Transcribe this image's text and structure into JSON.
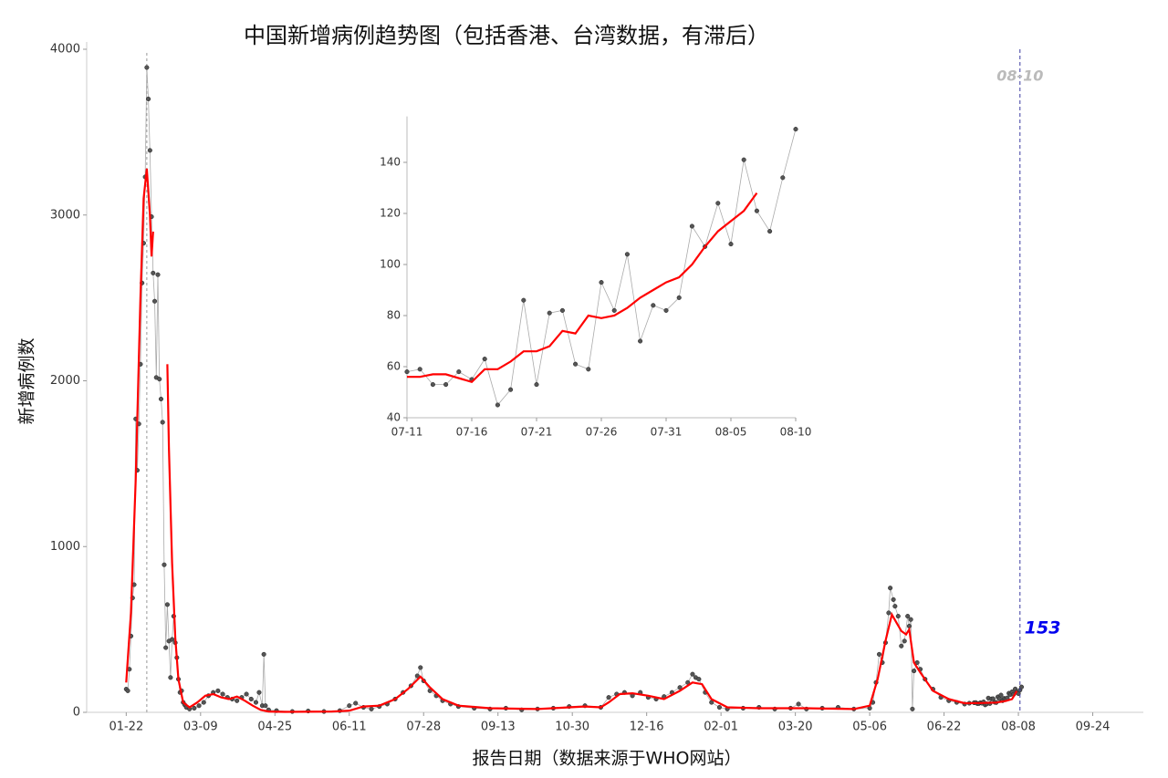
{
  "chart_data": [
    {
      "type": "line",
      "title": "中国新增病例趋势图（包括香港、台湾数据，有滞后）",
      "x_label": "报告日期（数据来源于WHO网站）",
      "y_label": "新增病例数",
      "xlim": [
        -25,
        643
      ],
      "ylim": [
        0,
        4000
      ],
      "xticks": [
        {
          "value": 0,
          "label": "01-22"
        },
        {
          "value": 47,
          "label": "03-09"
        },
        {
          "value": 94,
          "label": "04-25"
        },
        {
          "value": 141,
          "label": "06-11"
        },
        {
          "value": 188,
          "label": "07-28"
        },
        {
          "value": 235,
          "label": "09-13"
        },
        {
          "value": 282,
          "label": "10-30"
        },
        {
          "value": 329,
          "label": "12-16"
        },
        {
          "value": 376,
          "label": "02-01"
        },
        {
          "value": 423,
          "label": "03-20"
        },
        {
          "value": 470,
          "label": "05-06"
        },
        {
          "value": 517,
          "label": "06-22"
        },
        {
          "value": 564,
          "label": "08-08"
        },
        {
          "value": 611,
          "label": "09-24"
        }
      ],
      "yticks": [
        0,
        1000,
        2000,
        3000,
        4000
      ],
      "grid": false,
      "reference_line_x": 13,
      "end_marker": {
        "x": 565,
        "label": "08-10",
        "value": 153
      },
      "series": [
        {
          "color": "#555555",
          "markers": true,
          "x": [
            0,
            1,
            2,
            3,
            4,
            5,
            6,
            7,
            8,
            9,
            10,
            11,
            12,
            13,
            14,
            15,
            16,
            17,
            18,
            19,
            20,
            21,
            22,
            23,
            24,
            25,
            26,
            27,
            28,
            29,
            30,
            31,
            32,
            33,
            34,
            35,
            36,
            37,
            38,
            40,
            43,
            46,
            49,
            52,
            55,
            58,
            61,
            64,
            67,
            70,
            73,
            76,
            79,
            82,
            84,
            86,
            87,
            88,
            90,
            95,
            105,
            115,
            125,
            135,
            141,
            145,
            150,
            155,
            160,
            165,
            170,
            175,
            180,
            184,
            186,
            188,
            192,
            196,
            200,
            205,
            210,
            220,
            230,
            240,
            250,
            260,
            270,
            280,
            290,
            300,
            305,
            310,
            315,
            320,
            325,
            330,
            335,
            340,
            345,
            350,
            355,
            358,
            360,
            362,
            366,
            370,
            375,
            380,
            390,
            400,
            410,
            420,
            425,
            430,
            440,
            450,
            460,
            470,
            472,
            474,
            476,
            478,
            480,
            482,
            483,
            485,
            486,
            488,
            490,
            492,
            494,
            495,
            496,
            497,
            498,
            500,
            502,
            505,
            510,
            515,
            520,
            525,
            530,
            533,
            536,
            537,
            538,
            539,
            540,
            541,
            542,
            543,
            544,
            545,
            546,
            547,
            548,
            549,
            550,
            551,
            552,
            553,
            554,
            555,
            556,
            557,
            558,
            559,
            560,
            561,
            562,
            563,
            564,
            565,
            566
          ],
          "values": [
            140,
            130,
            260,
            460,
            690,
            770,
            1770,
            1460,
            1740,
            2100,
            2590,
            2830,
            3230,
            3890,
            3700,
            3390,
            2990,
            2650,
            2480,
            2020,
            2640,
            2010,
            1890,
            1750,
            890,
            390,
            650,
            430,
            210,
            440,
            580,
            420,
            330,
            200,
            120,
            130,
            60,
            45,
            30,
            20,
            25,
            40,
            60,
            100,
            120,
            130,
            110,
            90,
            80,
            70,
            90,
            110,
            80,
            60,
            120,
            40,
            350,
            40,
            15,
            10,
            5,
            8,
            5,
            10,
            40,
            55,
            30,
            20,
            35,
            50,
            80,
            120,
            160,
            220,
            270,
            190,
            130,
            100,
            70,
            50,
            35,
            25,
            20,
            25,
            15,
            20,
            25,
            35,
            40,
            30,
            90,
            110,
            120,
            100,
            120,
            90,
            80,
            95,
            120,
            150,
            180,
            230,
            210,
            200,
            120,
            60,
            30,
            20,
            25,
            30,
            20,
            25,
            50,
            20,
            25,
            30,
            20,
            25,
            60,
            180,
            350,
            300,
            420,
            600,
            750,
            680,
            640,
            580,
            400,
            430,
            580,
            520,
            560,
            20,
            250,
            300,
            260,
            200,
            140,
            90,
            70,
            60,
            50,
            55,
            58,
            59,
            53,
            53,
            58,
            55,
            63,
            45,
            51,
            86,
            53,
            81,
            82,
            61,
            59,
            93,
            82,
            104,
            70,
            84,
            82,
            87,
            115,
            107,
            124,
            108,
            141,
            121,
            113,
            134,
            153
          ]
        },
        {
          "color": "#ff0000",
          "markers": false,
          "x": [
            0,
            3,
            6,
            9,
            11,
            13,
            15,
            16,
            17,
            18,
            26,
            27,
            29,
            31,
            33,
            36,
            40,
            45,
            50,
            55,
            60,
            65,
            70,
            75,
            80,
            85,
            90,
            100,
            130,
            141,
            150,
            160,
            170,
            178,
            186,
            192,
            200,
            210,
            230,
            260,
            290,
            300,
            305,
            312,
            320,
            330,
            340,
            350,
            358,
            364,
            370,
            380,
            400,
            430,
            460,
            470,
            475,
            480,
            484,
            487,
            490,
            493,
            495,
            498,
            502,
            510,
            520,
            530,
            540,
            550,
            556,
            560,
            563
          ],
          "values": [
            180,
            600,
            1400,
            2500,
            3100,
            3280,
            3000,
            2750,
            2900,
            null,
            2100,
            1600,
            900,
            450,
            200,
            60,
            30,
            60,
            100,
            110,
            90,
            80,
            95,
            70,
            40,
            15,
            5,
            3,
            5,
            10,
            35,
            40,
            80,
            140,
            215,
            150,
            80,
            40,
            25,
            20,
            35,
            30,
            60,
            110,
            115,
            100,
            80,
            130,
            180,
            170,
            80,
            30,
            25,
            25,
            20,
            40,
            200,
            430,
            590,
            540,
            490,
            470,
            500,
            300,
            240,
            130,
            80,
            55,
            56,
            59,
            68,
            80,
            128
          ]
        }
      ]
    },
    {
      "type": "line",
      "xlim": [
        536,
        566
      ],
      "ylim": [
        40,
        158
      ],
      "xticks": [
        {
          "value": 536,
          "label": "07-11"
        },
        {
          "value": 541,
          "label": "07-16"
        },
        {
          "value": 546,
          "label": "07-21"
        },
        {
          "value": 551,
          "label": "07-26"
        },
        {
          "value": 556,
          "label": "07-31"
        },
        {
          "value": 561,
          "label": "08-05"
        },
        {
          "value": 566,
          "label": "08-10"
        }
      ],
      "yticks": [
        40,
        60,
        80,
        100,
        120,
        140
      ],
      "series": [
        {
          "color": "#555555",
          "markers": true,
          "x": [
            536,
            537,
            538,
            539,
            540,
            541,
            542,
            543,
            544,
            545,
            546,
            547,
            548,
            549,
            550,
            551,
            552,
            553,
            554,
            555,
            556,
            557,
            558,
            559,
            560,
            561,
            562,
            563,
            564,
            565,
            566
          ],
          "values": [
            58,
            59,
            53,
            53,
            58,
            55,
            63,
            45,
            51,
            86,
            53,
            81,
            82,
            61,
            59,
            93,
            82,
            104,
            70,
            84,
            82,
            87,
            115,
            107,
            124,
            108,
            141,
            121,
            113,
            134,
            153
          ]
        },
        {
          "color": "#ff0000",
          "markers": false,
          "x": [
            536,
            537,
            538,
            539,
            541,
            542,
            543,
            544,
            545,
            546,
            547,
            548,
            549,
            550,
            551,
            552,
            553,
            554,
            555,
            556,
            557,
            558,
            559,
            560,
            561,
            562,
            563
          ],
          "values": [
            56,
            56,
            57,
            57,
            54,
            59,
            59,
            62,
            66,
            66,
            68,
            74,
            73,
            80,
            79,
            80,
            83,
            87,
            90,
            93,
            95,
            100,
            107,
            113,
            117,
            121,
            128
          ]
        }
      ]
    }
  ]
}
